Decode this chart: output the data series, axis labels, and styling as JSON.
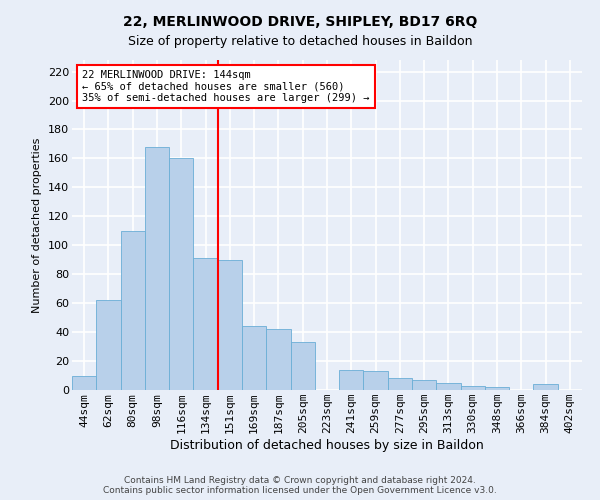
{
  "title_line1": "22, MERLINWOOD DRIVE, SHIPLEY, BD17 6RQ",
  "title_line2": "Size of property relative to detached houses in Baildon",
  "xlabel": "Distribution of detached houses by size in Baildon",
  "ylabel": "Number of detached properties",
  "footer_line1": "Contains HM Land Registry data © Crown copyright and database right 2024.",
  "footer_line2": "Contains public sector information licensed under the Open Government Licence v3.0.",
  "categories": [
    "44sqm",
    "62sqm",
    "80sqm",
    "98sqm",
    "116sqm",
    "134sqm",
    "151sqm",
    "169sqm",
    "187sqm",
    "205sqm",
    "223sqm",
    "241sqm",
    "259sqm",
    "277sqm",
    "295sqm",
    "313sqm",
    "330sqm",
    "348sqm",
    "366sqm",
    "384sqm",
    "402sqm"
  ],
  "values": [
    10,
    62,
    110,
    168,
    160,
    91,
    90,
    44,
    42,
    33,
    0,
    14,
    13,
    8,
    7,
    5,
    3,
    2,
    0,
    4,
    0
  ],
  "bar_color": "#b8d0ea",
  "bar_edge_color": "#6aaed6",
  "vline_index": 6,
  "vline_color": "red",
  "annotation_text": "22 MERLINWOOD DRIVE: 144sqm\n← 65% of detached houses are smaller (560)\n35% of semi-detached houses are larger (299) →",
  "annotation_box_color": "white",
  "annotation_box_edge_color": "red",
  "ylim": [
    0,
    228
  ],
  "yticks": [
    0,
    20,
    40,
    60,
    80,
    100,
    120,
    140,
    160,
    180,
    200,
    220
  ],
  "background_color": "#e8eef8",
  "grid_color": "white",
  "title_fontsize": 10,
  "subtitle_fontsize": 9,
  "ylabel_fontsize": 8,
  "xlabel_fontsize": 9,
  "tick_fontsize": 8,
  "footer_fontsize": 6.5
}
